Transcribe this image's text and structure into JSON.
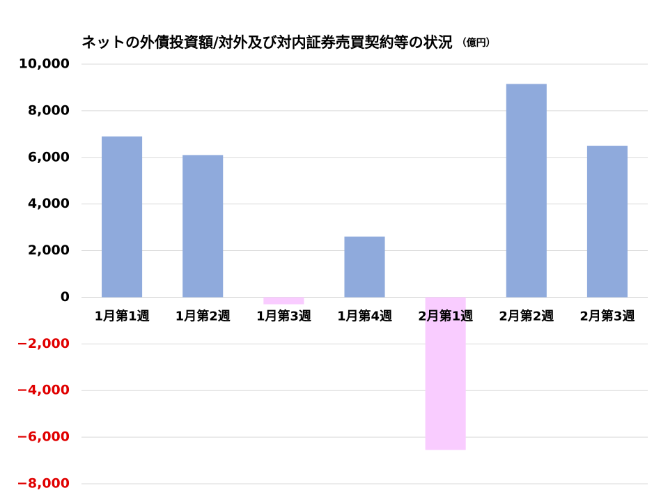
{
  "chart_data": {
    "type": "bar",
    "title": "ネットの外債投資額/対外及び対内証券売買契約等の状況",
    "unit": "（億円）",
    "categories": [
      "1月第1週",
      "1月第2週",
      "1月第3週",
      "1月第4週",
      "2月第1週",
      "2月第2週",
      "2月第3週"
    ],
    "values": [
      6900,
      6100,
      -300,
      2600,
      -6550,
      9150,
      6500
    ],
    "color": "#8faadc",
    "negative_color": "#f9ccff",
    "ylim": [
      -8000,
      10000
    ],
    "yticks": [
      {
        "value": -8000,
        "label": "−8,000"
      },
      {
        "value": -6000,
        "label": "−6,000"
      },
      {
        "value": -4000,
        "label": "−4,000"
      },
      {
        "value": -2000,
        "label": "−2,000"
      },
      0,
      {
        "value": 2000,
        "label": "2,000"
      },
      {
        "value": 4000,
        "label": "4,000"
      },
      {
        "value": 6000,
        "label": "6,000"
      },
      {
        "value": 8000,
        "label": "8,000"
      },
      {
        "value": 10000,
        "label": "10,000"
      }
    ],
    "negative_label_color": "#e00000",
    "grid": true
  }
}
